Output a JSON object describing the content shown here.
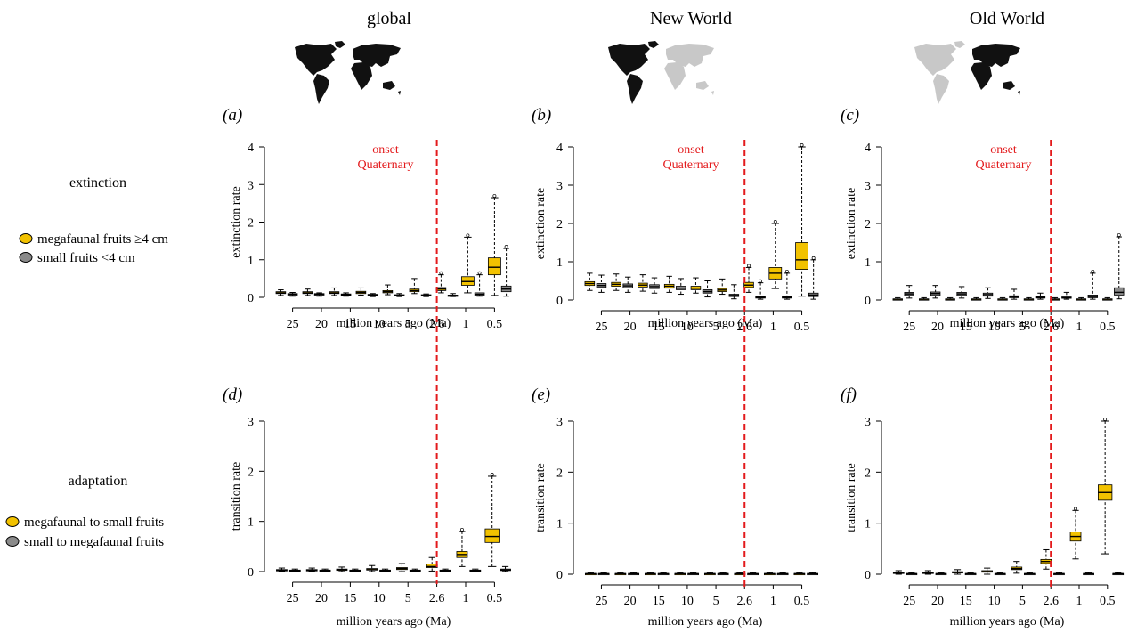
{
  "colors": {
    "mega": "#f2c200",
    "small": "#8a8a8a",
    "onset": "#e31a1c",
    "land": "#111111",
    "land_faded": "#c8c8c8"
  },
  "regions": [
    {
      "title": "global",
      "map_icon": "world-map-icon"
    },
    {
      "title": "New World",
      "map_icon": "world-map-new-world-icon"
    },
    {
      "title": "Old World",
      "map_icon": "world-map-old-world-icon"
    }
  ],
  "rows": [
    {
      "label": "extinction",
      "legend": [
        "megafaunal fruits ≥4 cm",
        "small fruits <4 cm"
      ]
    },
    {
      "label": "adaptation",
      "legend": [
        "megafaunal to small fruits",
        "small to megafaunal fruits"
      ]
    }
  ],
  "annotation": {
    "line1": "onset",
    "line2": "Quaternary",
    "at": 2.6
  },
  "chart_data": [
    {
      "type": "boxplot",
      "panel": "(a)",
      "region": "global",
      "row": "extinction",
      "xlabel": "million years ago (Ma)",
      "ylabel": "extinction rate",
      "xticks": [
        "25",
        "20",
        "15",
        "10",
        "5",
        "2.6",
        "1",
        "0.5"
      ],
      "yticks": [
        0,
        1,
        2,
        3,
        4
      ],
      "ylim": [
        0,
        4
      ],
      "onset_line": 2.6,
      "series": [
        {
          "name": "megafaunal fruits ≥4 cm",
          "color": "mega",
          "boxes": [
            [
              0.05,
              0.1,
              0.12,
              0.15,
              0.2
            ],
            [
              0.05,
              0.1,
              0.12,
              0.15,
              0.22
            ],
            [
              0.05,
              0.1,
              0.12,
              0.15,
              0.25
            ],
            [
              0.06,
              0.1,
              0.13,
              0.16,
              0.25
            ],
            [
              0.07,
              0.12,
              0.15,
              0.18,
              0.33
            ],
            [
              0.1,
              0.15,
              0.18,
              0.22,
              0.5
            ],
            [
              0.12,
              0.18,
              0.22,
              0.26,
              0.6
            ],
            [
              0.12,
              0.32,
              0.42,
              0.55,
              1.6
            ],
            [
              0.05,
              0.6,
              0.8,
              1.05,
              2.65
            ]
          ]
        },
        {
          "name": "small fruits <4 cm",
          "color": "small",
          "boxes": [
            [
              0.03,
              0.06,
              0.08,
              0.1,
              0.13
            ],
            [
              0.03,
              0.06,
              0.08,
              0.1,
              0.12
            ],
            [
              0.03,
              0.06,
              0.07,
              0.09,
              0.12
            ],
            [
              0.02,
              0.05,
              0.06,
              0.08,
              0.1
            ],
            [
              0.02,
              0.04,
              0.05,
              0.07,
              0.1
            ],
            [
              0.02,
              0.04,
              0.05,
              0.07,
              0.09
            ],
            [
              0.02,
              0.04,
              0.05,
              0.06,
              0.1
            ],
            [
              0.03,
              0.06,
              0.08,
              0.12,
              0.6
            ],
            [
              0.03,
              0.15,
              0.22,
              0.3,
              1.3
            ]
          ]
        }
      ]
    },
    {
      "type": "boxplot",
      "panel": "(b)",
      "region": "New World",
      "row": "extinction",
      "xlabel": "million years ago (Ma)",
      "ylabel": "extinction rate",
      "xticks": [
        "25",
        "20",
        "15",
        "10",
        "5",
        "2.6",
        "1",
        "0.5"
      ],
      "yticks": [
        0,
        1,
        2,
        3,
        4
      ],
      "ylim": [
        0,
        4
      ],
      "onset_line": 2.6,
      "series": [
        {
          "name": "megafaunal fruits ≥4 cm",
          "color": "mega",
          "boxes": [
            [
              0.25,
              0.38,
              0.43,
              0.48,
              0.7
            ],
            [
              0.25,
              0.36,
              0.41,
              0.46,
              0.68
            ],
            [
              0.23,
              0.34,
              0.39,
              0.44,
              0.66
            ],
            [
              0.2,
              0.31,
              0.36,
              0.41,
              0.62
            ],
            [
              0.18,
              0.27,
              0.31,
              0.36,
              0.58
            ],
            [
              0.15,
              0.22,
              0.26,
              0.3,
              0.55
            ],
            [
              0.2,
              0.33,
              0.39,
              0.46,
              0.85
            ],
            [
              0.3,
              0.55,
              0.7,
              0.85,
              2.0
            ],
            [
              0.1,
              0.8,
              1.05,
              1.5,
              4.0
            ]
          ]
        },
        {
          "name": "small fruits <4 cm",
          "color": "small",
          "boxes": [
            [
              0.2,
              0.33,
              0.38,
              0.43,
              0.65
            ],
            [
              0.2,
              0.32,
              0.37,
              0.42,
              0.6
            ],
            [
              0.18,
              0.3,
              0.35,
              0.4,
              0.58
            ],
            [
              0.15,
              0.27,
              0.31,
              0.36,
              0.56
            ],
            [
              0.08,
              0.18,
              0.22,
              0.27,
              0.5
            ],
            [
              0.03,
              0.09,
              0.12,
              0.15,
              0.4
            ],
            [
              0.02,
              0.05,
              0.07,
              0.09,
              0.45
            ],
            [
              0.02,
              0.05,
              0.07,
              0.09,
              0.7
            ],
            [
              0.02,
              0.09,
              0.13,
              0.18,
              1.05
            ]
          ]
        }
      ]
    },
    {
      "type": "boxplot",
      "panel": "(c)",
      "region": "Old World",
      "row": "extinction",
      "xlabel": "million years ago (Ma)",
      "ylabel": "extinction rate",
      "xticks": [
        "25",
        "20",
        "15",
        "10",
        "5",
        "2.6",
        "1",
        "0.5"
      ],
      "yticks": [
        0,
        1,
        2,
        3,
        4
      ],
      "ylim": [
        0,
        4
      ],
      "onset_line": 2.6,
      "series": [
        {
          "name": "megafaunal fruits ≥4 cm",
          "color": "mega",
          "boxes": [
            [
              0.0,
              0.01,
              0.02,
              0.03,
              0.06
            ],
            [
              0.0,
              0.01,
              0.02,
              0.03,
              0.06
            ],
            [
              0.0,
              0.01,
              0.02,
              0.03,
              0.06
            ],
            [
              0.0,
              0.01,
              0.02,
              0.03,
              0.06
            ],
            [
              0.0,
              0.01,
              0.02,
              0.03,
              0.06
            ],
            [
              0.0,
              0.01,
              0.02,
              0.03,
              0.06
            ],
            [
              0.0,
              0.01,
              0.02,
              0.03,
              0.06
            ],
            [
              0.0,
              0.01,
              0.02,
              0.03,
              0.06
            ],
            [
              0.0,
              0.01,
              0.02,
              0.03,
              0.06
            ]
          ]
        },
        {
          "name": "small fruits <4 cm",
          "color": "small",
          "boxes": [
            [
              0.05,
              0.12,
              0.16,
              0.2,
              0.38
            ],
            [
              0.05,
              0.12,
              0.17,
              0.21,
              0.38
            ],
            [
              0.05,
              0.12,
              0.16,
              0.2,
              0.35
            ],
            [
              0.04,
              0.1,
              0.14,
              0.18,
              0.32
            ],
            [
              0.02,
              0.06,
              0.08,
              0.11,
              0.28
            ],
            [
              0.02,
              0.05,
              0.07,
              0.09,
              0.18
            ],
            [
              0.02,
              0.05,
              0.06,
              0.08,
              0.2
            ],
            [
              0.02,
              0.06,
              0.09,
              0.13,
              0.7
            ],
            [
              0.03,
              0.13,
              0.2,
              0.32,
              1.65
            ]
          ]
        }
      ]
    },
    {
      "type": "boxplot",
      "panel": "(d)",
      "region": "global",
      "row": "adaptation",
      "xlabel": "million years ago (Ma)",
      "ylabel": "transition rate",
      "xticks": [
        "25",
        "20",
        "15",
        "10",
        "5",
        "2.6",
        "1",
        "0.5"
      ],
      "yticks": [
        0,
        1,
        2,
        3
      ],
      "ylim": [
        0,
        3
      ],
      "onset_line": 2.6,
      "series": [
        {
          "name": "megafaunal to small fruits",
          "color": "mega",
          "boxes": [
            [
              0.0,
              0.02,
              0.03,
              0.04,
              0.07
            ],
            [
              0.0,
              0.02,
              0.03,
              0.04,
              0.07
            ],
            [
              0.0,
              0.03,
              0.04,
              0.05,
              0.09
            ],
            [
              0.0,
              0.03,
              0.05,
              0.06,
              0.12
            ],
            [
              0.0,
              0.04,
              0.06,
              0.08,
              0.16
            ],
            [
              0.01,
              0.08,
              0.1,
              0.15,
              0.28
            ],
            [
              0.1,
              0.28,
              0.34,
              0.4,
              0.8
            ],
            [
              0.1,
              0.58,
              0.7,
              0.85,
              1.9
            ]
          ]
        },
        {
          "name": "small to megafaunal fruits",
          "color": "small",
          "boxes": [
            [
              0.0,
              0.01,
              0.02,
              0.03,
              0.05
            ],
            [
              0.0,
              0.01,
              0.02,
              0.03,
              0.05
            ],
            [
              0.0,
              0.01,
              0.02,
              0.03,
              0.05
            ],
            [
              0.0,
              0.01,
              0.02,
              0.03,
              0.05
            ],
            [
              0.0,
              0.01,
              0.02,
              0.03,
              0.05
            ],
            [
              0.0,
              0.01,
              0.02,
              0.03,
              0.05
            ],
            [
              0.0,
              0.01,
              0.02,
              0.03,
              0.05
            ],
            [
              0.0,
              0.02,
              0.03,
              0.05,
              0.1
            ]
          ]
        }
      ]
    },
    {
      "type": "boxplot",
      "panel": "(e)",
      "region": "New World",
      "row": "adaptation",
      "xlabel": "million years ago (Ma)",
      "ylabel": "transition rate",
      "xticks": [
        "25",
        "20",
        "15",
        "10",
        "5",
        "2.6",
        "1",
        "0.5"
      ],
      "yticks": [
        0,
        1,
        2,
        3
      ],
      "ylim": [
        0,
        3
      ],
      "onset_line": 2.6,
      "series": [
        {
          "name": "megafaunal to small fruits",
          "color": "mega",
          "boxes": [
            [
              0.0,
              0.005,
              0.01,
              0.015,
              0.03
            ],
            [
              0.0,
              0.005,
              0.01,
              0.015,
              0.03
            ],
            [
              0.0,
              0.005,
              0.01,
              0.015,
              0.03
            ],
            [
              0.0,
              0.005,
              0.01,
              0.015,
              0.03
            ],
            [
              0.0,
              0.005,
              0.01,
              0.015,
              0.03
            ],
            [
              0.0,
              0.005,
              0.01,
              0.015,
              0.03
            ],
            [
              0.0,
              0.005,
              0.01,
              0.015,
              0.03
            ],
            [
              0.0,
              0.005,
              0.01,
              0.015,
              0.03
            ]
          ]
        },
        {
          "name": "small to megafaunal fruits",
          "color": "small",
          "boxes": [
            [
              0.0,
              0.005,
              0.01,
              0.015,
              0.03
            ],
            [
              0.0,
              0.005,
              0.01,
              0.015,
              0.03
            ],
            [
              0.0,
              0.005,
              0.01,
              0.015,
              0.03
            ],
            [
              0.0,
              0.005,
              0.01,
              0.015,
              0.03
            ],
            [
              0.0,
              0.005,
              0.01,
              0.015,
              0.03
            ],
            [
              0.0,
              0.005,
              0.01,
              0.015,
              0.03
            ],
            [
              0.0,
              0.005,
              0.01,
              0.015,
              0.03
            ],
            [
              0.0,
              0.005,
              0.01,
              0.015,
              0.03
            ]
          ]
        }
      ]
    },
    {
      "type": "boxplot",
      "panel": "(f)",
      "region": "Old World",
      "row": "adaptation",
      "xlabel": "million years ago (Ma)",
      "ylabel": "transition rate",
      "xticks": [
        "25",
        "20",
        "15",
        "10",
        "5",
        "2.6",
        "1",
        "0.5"
      ],
      "yticks": [
        0,
        1,
        2,
        3
      ],
      "ylim": [
        0,
        3
      ],
      "onset_line": 2.6,
      "series": [
        {
          "name": "megafaunal to small fruits",
          "color": "mega",
          "boxes": [
            [
              0.0,
              0.02,
              0.03,
              0.04,
              0.07
            ],
            [
              0.0,
              0.02,
              0.03,
              0.04,
              0.07
            ],
            [
              0.0,
              0.03,
              0.04,
              0.05,
              0.09
            ],
            [
              0.0,
              0.04,
              0.05,
              0.07,
              0.12
            ],
            [
              0.02,
              0.09,
              0.11,
              0.14,
              0.25
            ],
            [
              0.1,
              0.21,
              0.25,
              0.29,
              0.48
            ],
            [
              0.3,
              0.65,
              0.74,
              0.83,
              1.25
            ],
            [
              0.4,
              1.45,
              1.6,
              1.75,
              3.0
            ]
          ]
        },
        {
          "name": "small to megafaunal fruits",
          "color": "small",
          "boxes": [
            [
              0.0,
              0.005,
              0.01,
              0.015,
              0.03
            ],
            [
              0.0,
              0.005,
              0.01,
              0.015,
              0.03
            ],
            [
              0.0,
              0.005,
              0.01,
              0.015,
              0.03
            ],
            [
              0.0,
              0.005,
              0.01,
              0.015,
              0.03
            ],
            [
              0.0,
              0.005,
              0.01,
              0.015,
              0.03
            ],
            [
              0.0,
              0.005,
              0.01,
              0.015,
              0.03
            ],
            [
              0.0,
              0.005,
              0.01,
              0.015,
              0.03
            ],
            [
              0.0,
              0.005,
              0.01,
              0.015,
              0.03
            ]
          ]
        }
      ]
    }
  ]
}
